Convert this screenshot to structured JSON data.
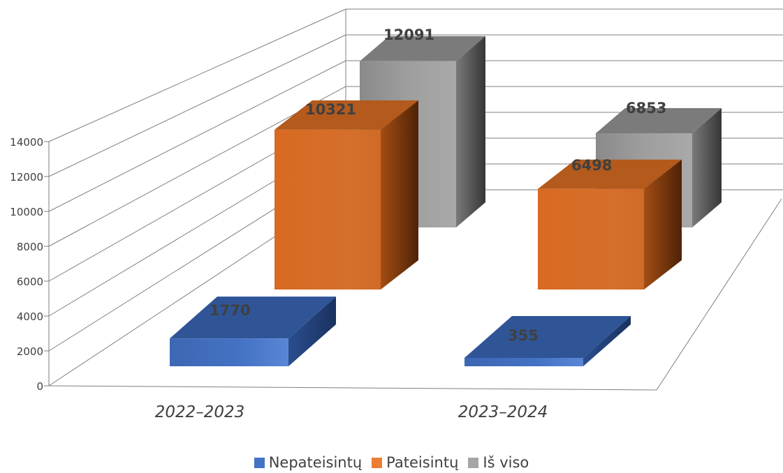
{
  "chart_data": {
    "type": "bar",
    "categories": [
      "2022–2023",
      "2023–2024"
    ],
    "series": [
      {
        "name": "Nepateisintų",
        "values": [
          1770,
          355
        ],
        "color": "#4472C4"
      },
      {
        "name": "Pateisintų",
        "values": [
          10321,
          6498
        ],
        "color": "#ED7D31"
      },
      {
        "name": "Iš viso",
        "values": [
          12091,
          6853
        ],
        "color": "#A5A5A5"
      }
    ],
    "ylim": [
      0,
      14000
    ],
    "yticks": [
      "0",
      "2000",
      "4000",
      "6000",
      "8000",
      "10000",
      "12000",
      "14000"
    ],
    "grid": true,
    "legend": "bottom",
    "style": "3d-column"
  },
  "legend_items": [
    {
      "label": "Nepateisintų",
      "color": "#4472C4"
    },
    {
      "label": "Pateisintų",
      "color": "#ED7D31"
    },
    {
      "label": "Iš viso",
      "color": "#A5A5A5"
    }
  ]
}
